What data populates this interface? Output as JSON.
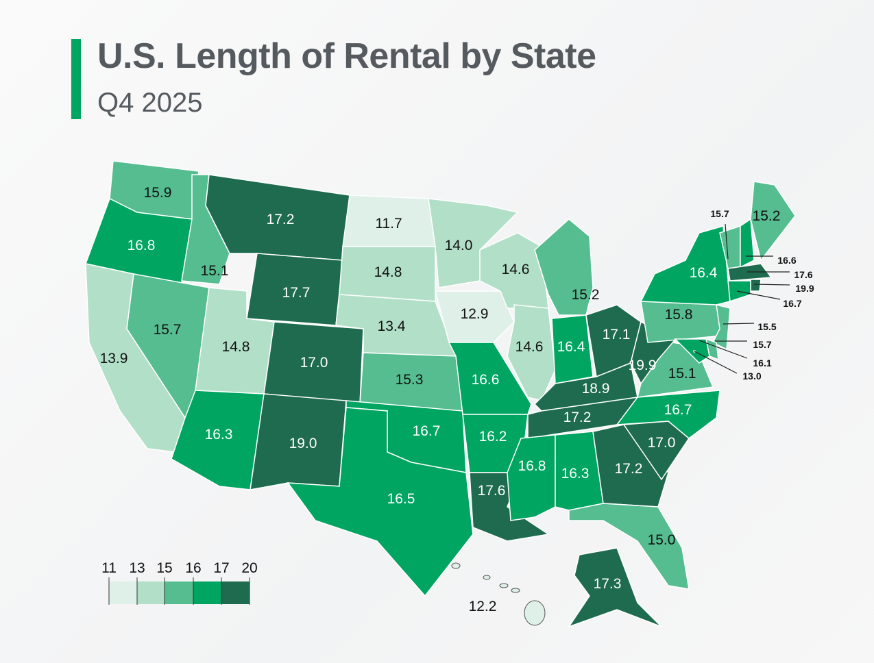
{
  "title": "U.S. Length of Rental by State",
  "subtitle": "Q4 2025",
  "legend": {
    "ticks": [
      "11",
      "13",
      "15",
      "16",
      "17",
      "20"
    ],
    "bins": [
      {
        "min": 11,
        "max": 13,
        "color": "#dff0e8"
      },
      {
        "min": 13,
        "max": 15,
        "color": "#b2dfc8"
      },
      {
        "min": 15,
        "max": 16,
        "color": "#55bd90"
      },
      {
        "min": 16,
        "max": 17,
        "color": "#00a562"
      },
      {
        "min": 17,
        "max": 20,
        "color": "#1e6b4f"
      }
    ]
  },
  "chart_data": {
    "type": "choropleth",
    "metric": "Length of rental",
    "period": "Q4 2025",
    "values": {
      "WA": "15.9",
      "OR": "16.8",
      "CA": "13.9",
      "NV": "15.7",
      "ID": "15.1",
      "MT": "17.2",
      "WY": "17.7",
      "UT": "14.8",
      "CO": "17.0",
      "AZ": "16.3",
      "NM": "19.0",
      "ND": "11.7",
      "SD": "14.8",
      "NE": "13.4",
      "KS": "15.3",
      "OK": "16.7",
      "TX": "16.5",
      "MN": "14.0",
      "IA": "12.9",
      "MO": "16.6",
      "AR": "16.2",
      "LA": "17.6",
      "WI": "14.6",
      "IL": "14.6",
      "MI": "15.2",
      "IN": "16.4",
      "OH": "17.1",
      "KY": "18.9",
      "TN": "17.2",
      "MS": "16.8",
      "AL": "16.3",
      "GA": "17.2",
      "FL": "15.0",
      "SC": "17.0",
      "NC": "16.7",
      "VA": "15.1",
      "WV": "19.9",
      "PA": "15.8",
      "NY": "16.4",
      "VT": "15.7",
      "NH": "16.6",
      "ME": "15.2",
      "MA": "17.6",
      "RI": "19.9",
      "CT": "16.7",
      "NJ": "15.5",
      "DE": "15.7",
      "MD": "16.1",
      "DC": "13.0",
      "AK": "17.3",
      "HI": "12.2"
    }
  }
}
